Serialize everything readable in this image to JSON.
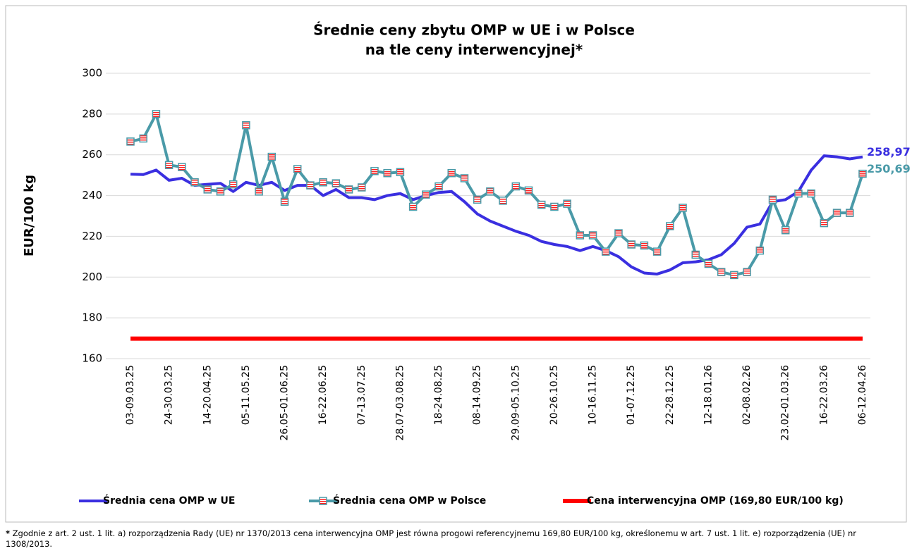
{
  "chart_data": {
    "type": "line",
    "title": [
      "Średnie ceny zbytu OMP w UE i w Polsce",
      "na tle ceny interwencyjnej*"
    ],
    "y_label": "EUR/100 kg",
    "categories": [
      "03-09.03.25",
      null,
      null,
      "24-30.03.25",
      null,
      null,
      "14-20.04.25",
      null,
      null,
      "05-11.05.25",
      null,
      null,
      "26.05-01.06.25",
      null,
      null,
      "16-22.06.25",
      null,
      null,
      "07-13.07.25",
      null,
      null,
      "28.07-03.08.25",
      null,
      null,
      "18-24.08.25",
      null,
      null,
      "08-14.09.25",
      null,
      null,
      "29.09-05.10.25",
      null,
      null,
      "20-26.10.25",
      null,
      null,
      "10-16.11.25",
      null,
      null,
      "01-07.12.25",
      null,
      null,
      "22-28.12.25",
      null,
      null,
      "12-18.01.26",
      null,
      null,
      "02-08.02.26",
      null,
      null,
      "23.02-01.03.26",
      null,
      null,
      "16-22.03.26",
      null,
      null,
      "06-12.04.26"
    ],
    "ylim": [
      160,
      300
    ],
    "yticks": [
      160,
      180,
      200,
      220,
      240,
      260,
      280,
      300
    ],
    "grid": true,
    "series": [
      {
        "name": "Średnia cena OMP w UE",
        "color": "#3a2fe0",
        "marker": false,
        "values": [
          250.5,
          250.3,
          252.5,
          247.5,
          248.5,
          245,
          245.5,
          246,
          242,
          246.5,
          245,
          246.5,
          242.5,
          245,
          245,
          240,
          243,
          239,
          239,
          238,
          240,
          241,
          238,
          240,
          241.5,
          242,
          237,
          231,
          227.5,
          225,
          222.5,
          220.5,
          217.5,
          216,
          215,
          213,
          215,
          213,
          210,
          205,
          202,
          201.5,
          203.5,
          207,
          207.5,
          208.5,
          211,
          216.5,
          224.5,
          226,
          237,
          238,
          242,
          252.5,
          259.5,
          259,
          258,
          258.97
        ],
        "value_labels": [
          null,
          null,
          null,
          null,
          null,
          null,
          null,
          null,
          null,
          null,
          null,
          null,
          null,
          null,
          null,
          null,
          null,
          null,
          null,
          null,
          null,
          null,
          null,
          null,
          null,
          null,
          null,
          null,
          null,
          null,
          null,
          null,
          null,
          null,
          null,
          null,
          null,
          null,
          null,
          null,
          null,
          null,
          null,
          null,
          null,
          null,
          null,
          null,
          null,
          null,
          null,
          null,
          null,
          null,
          null,
          null,
          null,
          "258,97"
        ]
      },
      {
        "name": "Średnia cena OMP w Polsce",
        "color": "#4a9aa8",
        "marker": true,
        "values": [
          266.5,
          268,
          280,
          255,
          254,
          246.5,
          243,
          242,
          245.5,
          274.5,
          242,
          259,
          237,
          253,
          245,
          246.5,
          246,
          243,
          244,
          252,
          251,
          251.5,
          234.5,
          240.5,
          244.5,
          251,
          248.5,
          238,
          242,
          237.5,
          244.5,
          242.5,
          235.5,
          234.5,
          236,
          220.5,
          220.5,
          212.5,
          221.5,
          216,
          215.5,
          212.5,
          225,
          234,
          211,
          206.5,
          202.5,
          201,
          202.5,
          213,
          238,
          223,
          241,
          241,
          226.5,
          231.5,
          231.5,
          250.69
        ],
        "value_labels": [
          null,
          null,
          null,
          null,
          null,
          null,
          null,
          null,
          null,
          null,
          null,
          null,
          null,
          null,
          null,
          null,
          null,
          null,
          null,
          null,
          null,
          null,
          null,
          null,
          null,
          null,
          null,
          null,
          null,
          null,
          null,
          null,
          null,
          null,
          null,
          null,
          null,
          null,
          null,
          null,
          null,
          null,
          null,
          null,
          null,
          null,
          null,
          null,
          null,
          null,
          null,
          null,
          null,
          null,
          null,
          null,
          null,
          "250,69"
        ]
      },
      {
        "name": "Cena interwencyjna OMP (169,80 EUR/100 kg)",
        "color": "#ff0000",
        "marker": false,
        "values": [
          169.8,
          169.8,
          169.8,
          169.8,
          169.8,
          169.8,
          169.8,
          169.8,
          169.8,
          169.8,
          169.8,
          169.8,
          169.8,
          169.8,
          169.8,
          169.8,
          169.8,
          169.8,
          169.8,
          169.8,
          169.8,
          169.8,
          169.8,
          169.8,
          169.8,
          169.8,
          169.8,
          169.8,
          169.8,
          169.8,
          169.8,
          169.8,
          169.8,
          169.8,
          169.8,
          169.8,
          169.8,
          169.8,
          169.8,
          169.8,
          169.8,
          169.8,
          169.8,
          169.8,
          169.8,
          169.8,
          169.8,
          169.8,
          169.8,
          169.8,
          169.8,
          169.8,
          169.8,
          169.8,
          169.8,
          169.8,
          169.8,
          169.8
        ]
      }
    ],
    "footnote": [
      "*",
      " Zgodnie z art. 2 ust. 1 lit. a)  rozporządzenia Rady (UE) nr 1370/2013 cena interwencyjna OMP jest równa progowi referencyjnemu 169,80 EUR/100 kg, określonemu w art. 7 ust. 1 lit. e) rozporządzenia (UE) nr 1308/2013."
    ]
  }
}
